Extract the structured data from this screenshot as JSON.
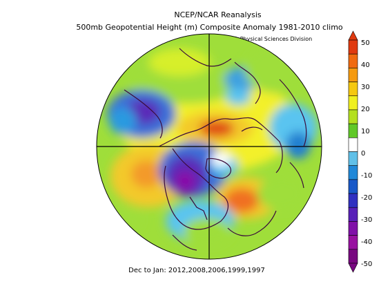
{
  "title": "NCEP/NCAR Reanalysis",
  "subtitle": "500mb Geopotential Height (m) Composite Anomaly 1981-2010 climo",
  "credit": "NOAA/ESRL Physical Sciences Division",
  "footer": "Dec to Jan: 2012,2008,2006,1999,1997",
  "colorbar": {
    "labels": [
      "50",
      "40",
      "30",
      "20",
      "10",
      "0",
      "-10",
      "-20",
      "-30",
      "-40",
      "-50"
    ],
    "colors": [
      "#e03a10",
      "#f06a10",
      "#f59a10",
      "#f5c810",
      "#f0f020",
      "#b4e020",
      "#60c828",
      "#ffffff",
      "#60c0e8",
      "#2088d8",
      "#1858c8",
      "#3030c0",
      "#5820b8",
      "#8010a8",
      "#9810a0",
      "#780880"
    ]
  }
}
